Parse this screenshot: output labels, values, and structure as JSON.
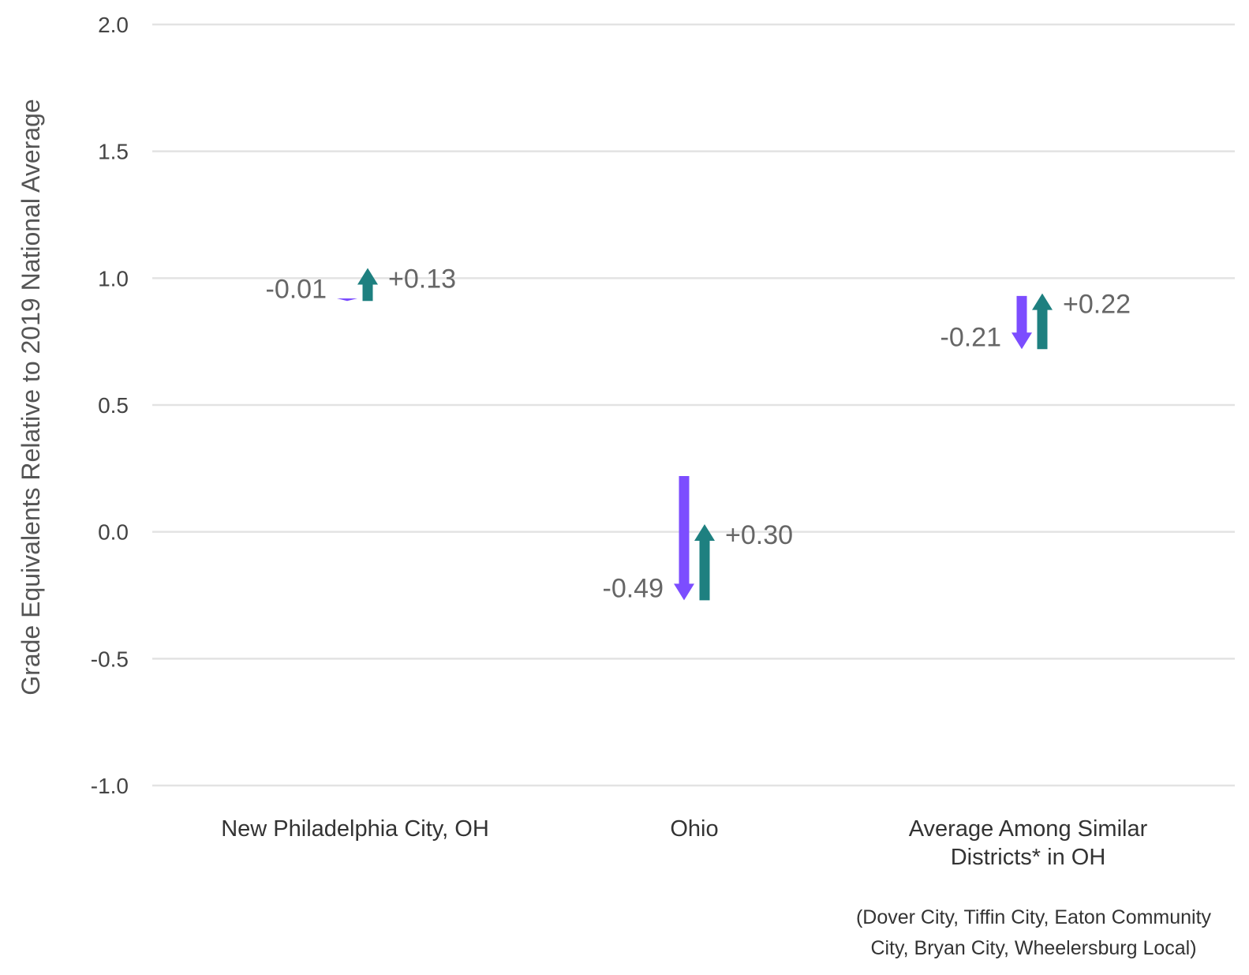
{
  "chart_data": {
    "type": "arrow",
    "ylabel": "Grade Equivalents Relative to 2019 National Average",
    "ylim": [
      -1.0,
      2.0
    ],
    "yticks": [
      "2.0",
      "1.5",
      "1.0",
      "0.5",
      "0.0",
      "-0.5",
      "-1.0"
    ],
    "grid": true,
    "colors": {
      "decline": "#7c4dff",
      "recovery": "#1e8080",
      "grid": "#e3e3e3"
    },
    "categories": [
      {
        "label_lines": [
          "New Philadelphia City, OH"
        ],
        "start": 0.92,
        "decline": -0.01,
        "decline_label": "-0.01",
        "recovery": 0.13,
        "recovery_label": "+0.13"
      },
      {
        "label_lines": [
          "Ohio"
        ],
        "start": 0.22,
        "decline": -0.49,
        "decline_label": "-0.49",
        "recovery": 0.3,
        "recovery_label": "+0.30"
      },
      {
        "label_lines": [
          "Average Among Similar",
          "Districts* in OH"
        ],
        "start": 0.93,
        "decline": -0.21,
        "decline_label": "-0.21",
        "recovery": 0.22,
        "recovery_label": "+0.22"
      }
    ],
    "footnote_lines": [
      "(Dover City, Tiffin City, Eaton Community",
      "City, Bryan City, Wheelersburg Local)"
    ]
  }
}
